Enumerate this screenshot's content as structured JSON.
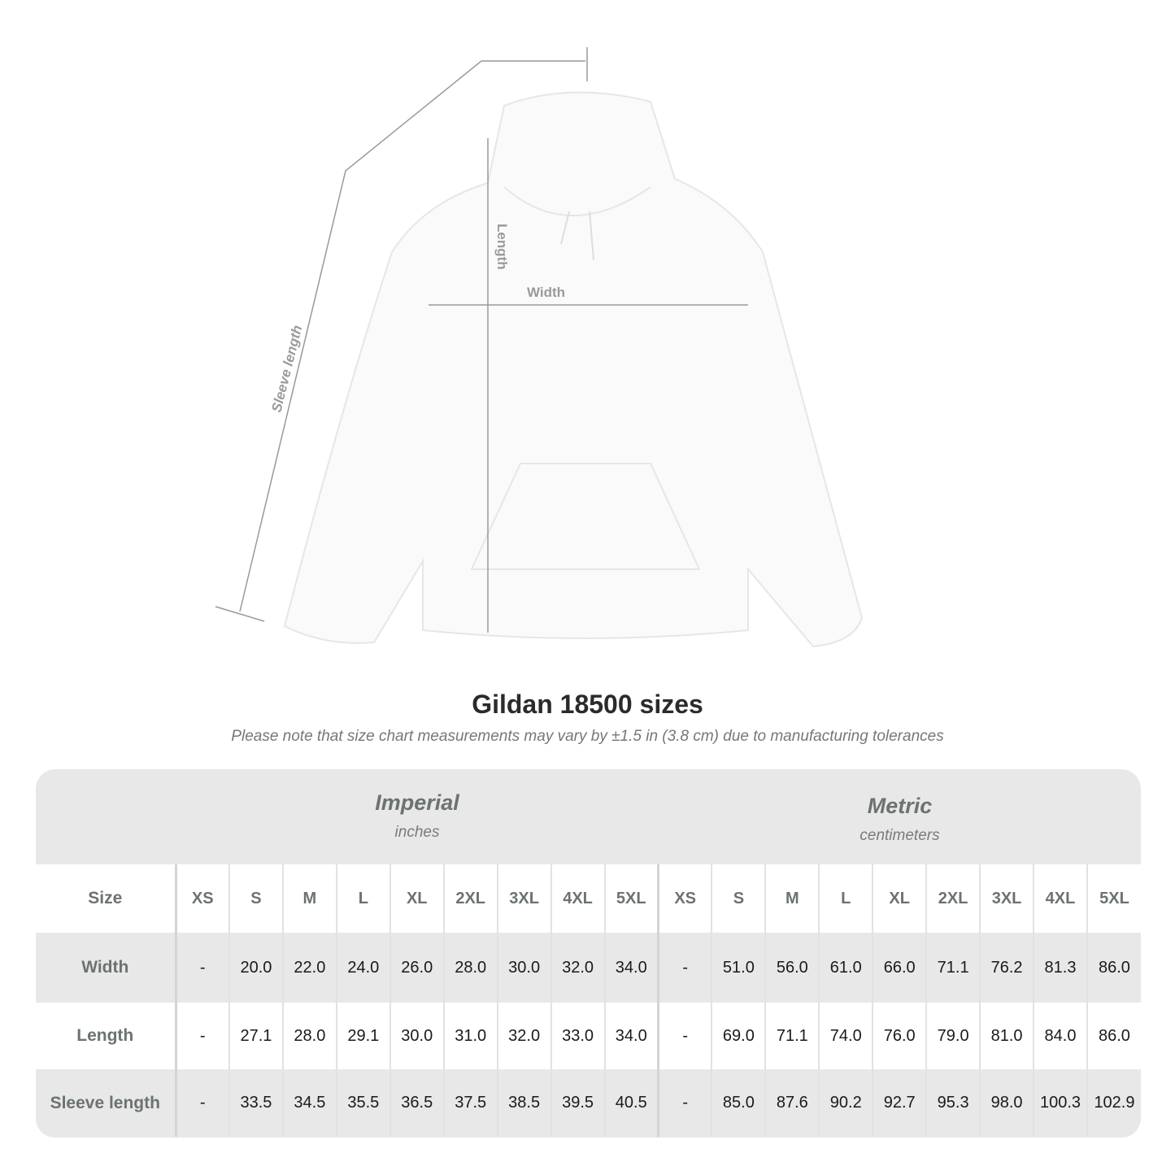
{
  "diagram": {
    "length_label": "Length",
    "width_label": "Width",
    "sleeve_label": "Sleeve length"
  },
  "title": "Gildan 18500 sizes",
  "subtitle": "Please note that size chart measurements may vary by ±1.5 in (3.8 cm) due to manufacturing tolerances",
  "imperial": {
    "name": "Imperial",
    "unit": "inches"
  },
  "metric": {
    "name": "Metric",
    "unit": "centimeters"
  },
  "table": {
    "size_header": "Size",
    "sizes": [
      "XS",
      "S",
      "M",
      "L",
      "XL",
      "2XL",
      "3XL",
      "4XL",
      "5XL"
    ],
    "rows": [
      {
        "label": "Width",
        "imperial": [
          "-",
          "20.0",
          "22.0",
          "24.0",
          "26.0",
          "28.0",
          "30.0",
          "32.0",
          "34.0"
        ],
        "metric": [
          "-",
          "51.0",
          "56.0",
          "61.0",
          "66.0",
          "71.1",
          "76.2",
          "81.3",
          "86.0"
        ]
      },
      {
        "label": "Length",
        "imperial": [
          "-",
          "27.1",
          "28.0",
          "29.1",
          "30.0",
          "31.0",
          "32.0",
          "33.0",
          "34.0"
        ],
        "metric": [
          "-",
          "69.0",
          "71.1",
          "74.0",
          "76.0",
          "79.0",
          "81.0",
          "84.0",
          "86.0"
        ]
      },
      {
        "label": "Sleeve length",
        "imperial": [
          "-",
          "33.5",
          "34.5",
          "35.5",
          "36.5",
          "37.5",
          "38.5",
          "39.5",
          "40.5"
        ],
        "metric": [
          "-",
          "85.0",
          "87.6",
          "90.2",
          "92.7",
          "95.3",
          "98.0",
          "100.3",
          "102.9"
        ]
      }
    ]
  }
}
